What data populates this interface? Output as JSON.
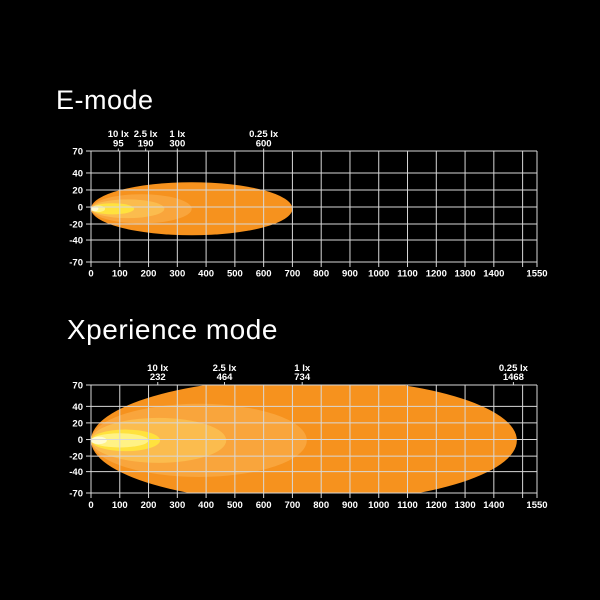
{
  "colors": {
    "background": "#000000",
    "grid": "#D8D8D8",
    "text": "#FFFFFF",
    "beam_025": "#F6921E",
    "beam_1": "#F9A53C",
    "beam_25": "#FBBC4E",
    "beam_10": "#FFE23E",
    "beam_hotspot": "#FFF285",
    "beam_glow": "#FFFBD0"
  },
  "chart_data": [
    {
      "type": "area",
      "title": "E-mode",
      "x_unit": "m",
      "xlim": [
        0,
        1550
      ],
      "ylim": [
        -70,
        70
      ],
      "grid": "on",
      "x_ticks": [
        {
          "label": "0",
          "value": 0
        },
        {
          "label": "100",
          "value": 100
        },
        {
          "label": "200",
          "value": 200
        },
        {
          "label": "300",
          "value": 300
        },
        {
          "label": "400",
          "value": 400
        },
        {
          "label": "500",
          "value": 500
        },
        {
          "label": "600",
          "value": 600
        },
        {
          "label": "700",
          "value": 700
        },
        {
          "label": "800",
          "value": 800
        },
        {
          "label": "900",
          "value": 900
        },
        {
          "label": "1000",
          "value": 1000
        },
        {
          "label": "1100",
          "value": 1100
        },
        {
          "label": "1200",
          "value": 1200
        },
        {
          "label": "1300",
          "value": 1300
        },
        {
          "label": "1400",
          "value": 1400
        },
        {
          "label": "1550",
          "value": 1550
        }
      ],
      "y_ticks": [
        "70",
        "40",
        "20",
        "0",
        "-20",
        "-40",
        "-70"
      ],
      "annotations": [
        {
          "label": "10 lx",
          "distance_m": 95
        },
        {
          "label": "2.5 lx",
          "distance_m": 190
        },
        {
          "label": "1 lx",
          "distance_m": 300
        },
        {
          "label": "0.25 lx",
          "distance_m": 600
        }
      ],
      "beam_layers": [
        {
          "name": "contour-0-25lx",
          "reach_m": 700,
          "half_width_m": 31,
          "color_key": "beam_025"
        },
        {
          "name": "contour-1lx",
          "reach_m": 350,
          "half_width_m": 17,
          "color_key": "beam_1"
        },
        {
          "name": "contour-2-5lx",
          "reach_m": 255,
          "half_width_m": 11,
          "color_key": "beam_25"
        },
        {
          "name": "contour-10lx",
          "reach_m": 150,
          "half_width_m": 6.5,
          "color_key": "beam_10"
        },
        {
          "name": "hotspot",
          "reach_m": 49,
          "half_width_m": 4,
          "color_key": "beam_hotspot"
        },
        {
          "name": "glow",
          "reach_m": 26,
          "half_width_m": 2.8,
          "color_key": "beam_glow"
        }
      ]
    },
    {
      "type": "area",
      "title": "Xperience mode",
      "x_unit": "m",
      "xlim": [
        0,
        1550
      ],
      "ylim": [
        -70,
        70
      ],
      "grid": "on",
      "x_ticks": [
        {
          "label": "0",
          "value": 0
        },
        {
          "label": "100",
          "value": 100
        },
        {
          "label": "200",
          "value": 200
        },
        {
          "label": "300",
          "value": 300
        },
        {
          "label": "400",
          "value": 400
        },
        {
          "label": "500",
          "value": 500
        },
        {
          "label": "600",
          "value": 600
        },
        {
          "label": "700",
          "value": 700
        },
        {
          "label": "800",
          "value": 800
        },
        {
          "label": "900",
          "value": 900
        },
        {
          "label": "1000",
          "value": 1000
        },
        {
          "label": "1100",
          "value": 1100
        },
        {
          "label": "1200",
          "value": 1200
        },
        {
          "label": "1300",
          "value": 1300
        },
        {
          "label": "1400",
          "value": 1400
        },
        {
          "label": "1550",
          "value": 1550
        }
      ],
      "y_ticks": [
        "70",
        "40",
        "20",
        "0",
        "-20",
        "-40",
        "-70"
      ],
      "annotations": [
        {
          "label": "10 lx",
          "distance_m": 232
        },
        {
          "label": "2.5 lx",
          "distance_m": 464
        },
        {
          "label": "1 lx",
          "distance_m": 734
        },
        {
          "label": "0.25 lx",
          "distance_m": 1468
        }
      ],
      "beam_layers": [
        {
          "name": "contour-0-25lx",
          "reach_m": 1480,
          "half_width_m": 75,
          "color_key": "beam_025"
        },
        {
          "name": "contour-1lx",
          "reach_m": 750,
          "half_width_m": 44,
          "color_key": "beam_1"
        },
        {
          "name": "contour-2-5lx",
          "reach_m": 470,
          "half_width_m": 27,
          "color_key": "beam_25"
        },
        {
          "name": "contour-10lx",
          "reach_m": 240,
          "half_width_m": 13,
          "color_key": "beam_10"
        },
        {
          "name": "hotspot",
          "reach_m": 200,
          "half_width_m": 8.5,
          "color_key": "beam_hotspot"
        },
        {
          "name": "glow",
          "reach_m": 55,
          "half_width_m": 4.5,
          "color_key": "beam_glow"
        }
      ]
    }
  ]
}
